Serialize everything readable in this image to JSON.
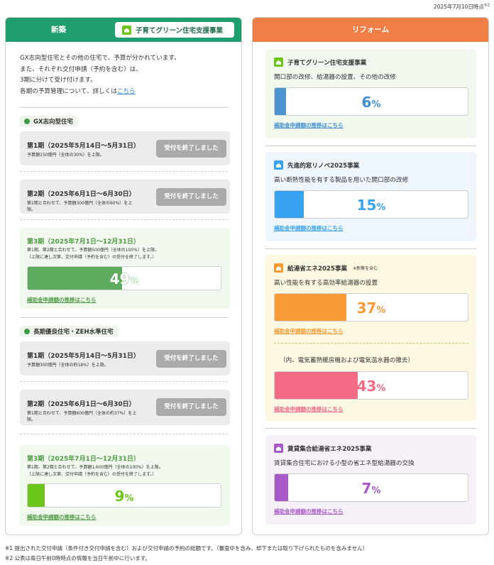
{
  "date": "2025年7月10日時点",
  "date_note": "※2",
  "left": {
    "title": "新築",
    "badge": "子育てグリーン住宅支援事業",
    "intro": [
      "GX志向型住宅とその他の住宅で、予算が分かれています。",
      "また、それぞれ交付申請（予約を含む）は、",
      "3期に分けて受け付けます。"
    ],
    "intro_last_prefix": "各期の予算管理について、詳しくは",
    "intro_link": "こちら",
    "sections": [
      {
        "title": "GX志向型住宅",
        "closed": [
          {
            "title": "第1期（2025年5月14日〜5月31日）",
            "note": "予算額150億円（全体の30%）を上限。",
            "button": "受付を終了しました"
          },
          {
            "title": "第2期（2025年6月1日〜6月30日）",
            "note": "第1期と合わせて、予算額300億円（全体の60%）を上限。",
            "button": "受付を終了しました"
          }
        ],
        "current": {
          "title": "第3期（2025年7月1日〜12月31日）",
          "note1": "第1期、第2期と合わせて、予算額500億円（全体の100%）を上限。",
          "note2": "（上限に達し次第、交付申請（予約を含む）の受付を終了します。）",
          "percent": "49",
          "percent_value": 49,
          "unit": "%",
          "link": "補助金申請額の推移はこちら",
          "color": "#5eaa5e"
        }
      },
      {
        "title": "長期優良住宅・ZEH水準住宅",
        "closed": [
          {
            "title": "第1期（2025年5月14日〜5月31日）",
            "note": "予算額300億円（全体の約18%）を上限。",
            "button": "受付を終了しました"
          },
          {
            "title": "第2期（2025年6月1日〜6月30日）",
            "note": "第1期と合わせて、予算額600億円（全体の約37%）を上限。",
            "button": "受付を終了しました"
          }
        ],
        "current": {
          "title": "第3期（2025年7月1日〜12月31日）",
          "note1": "第1期、第2期と合わせて、予算額1,600億円（全体の100%）を上限。",
          "note2": "（上限に達し次第、交付申請（予約を含む）の受付を終了します。）",
          "percent": "9",
          "percent_value": 9,
          "unit": "%",
          "link": "補助金申請額の推移はこちら",
          "color": "#6cc61a"
        }
      }
    ]
  },
  "right": {
    "title": "リフォーム",
    "cards": [
      {
        "title": "子育てグリーン住宅支援事業",
        "desc": "開口部の改修、給湯器の設置、その他の改修",
        "percent": "6",
        "percent_value": 6,
        "unit": "%",
        "link": "補助金申請額の推移はこちら",
        "color": "#4b94d0",
        "text_color": "#3f8ed2"
      },
      {
        "title": "先進的窓リノベ2025事業",
        "desc": "高い断熱性能を有する製品を用いた開口部の改修",
        "percent": "15",
        "percent_value": 15,
        "unit": "%",
        "link": "補助金申請額の推移はこちら",
        "color": "#3aa3f0",
        "text_color": "#3aa3f0"
      },
      {
        "title": "給湯省エネ2025事業",
        "title_note": "※新築を含む",
        "desc": "高い性能を有する高効率給湯器の設置",
        "percent": "37",
        "percent_value": 37,
        "unit": "%",
        "link": "補助金申請額の推移はこちら",
        "color": "#f89a35",
        "text_color": "#f89a35",
        "sub": {
          "desc": "（内、電気蓄熱暖房機および電気温水器の撤去）",
          "percent": "43",
          "percent_value": 43,
          "unit": "%",
          "link": "補助金申請額の推移はこちら",
          "color": "#f26a84",
          "text_color": "#f26a84"
        }
      },
      {
        "title": "賃貸集合給湯省エネ2025事業",
        "desc": "賃貸集合住宅における小型の省エネ型給湯器の交換",
        "percent": "7",
        "percent_value": 7,
        "unit": "%",
        "link": "補助金申請額の推移はこちら",
        "color": "#a759c8",
        "text_color": "#a759c8"
      }
    ]
  },
  "notes": [
    "※1 提出された交付申請（条件付き交付申請を含む）および交付申請の予約の総額です。（審査中を含み、却下または取り下げられたものを含みません）",
    "※2 公表は毎日午前0時時点の情報を当日午前中に行います。"
  ],
  "colors": {
    "left_header": "#1e9e6e",
    "right_header": "#ef7f45"
  },
  "icons": [
    "house-icon"
  ]
}
